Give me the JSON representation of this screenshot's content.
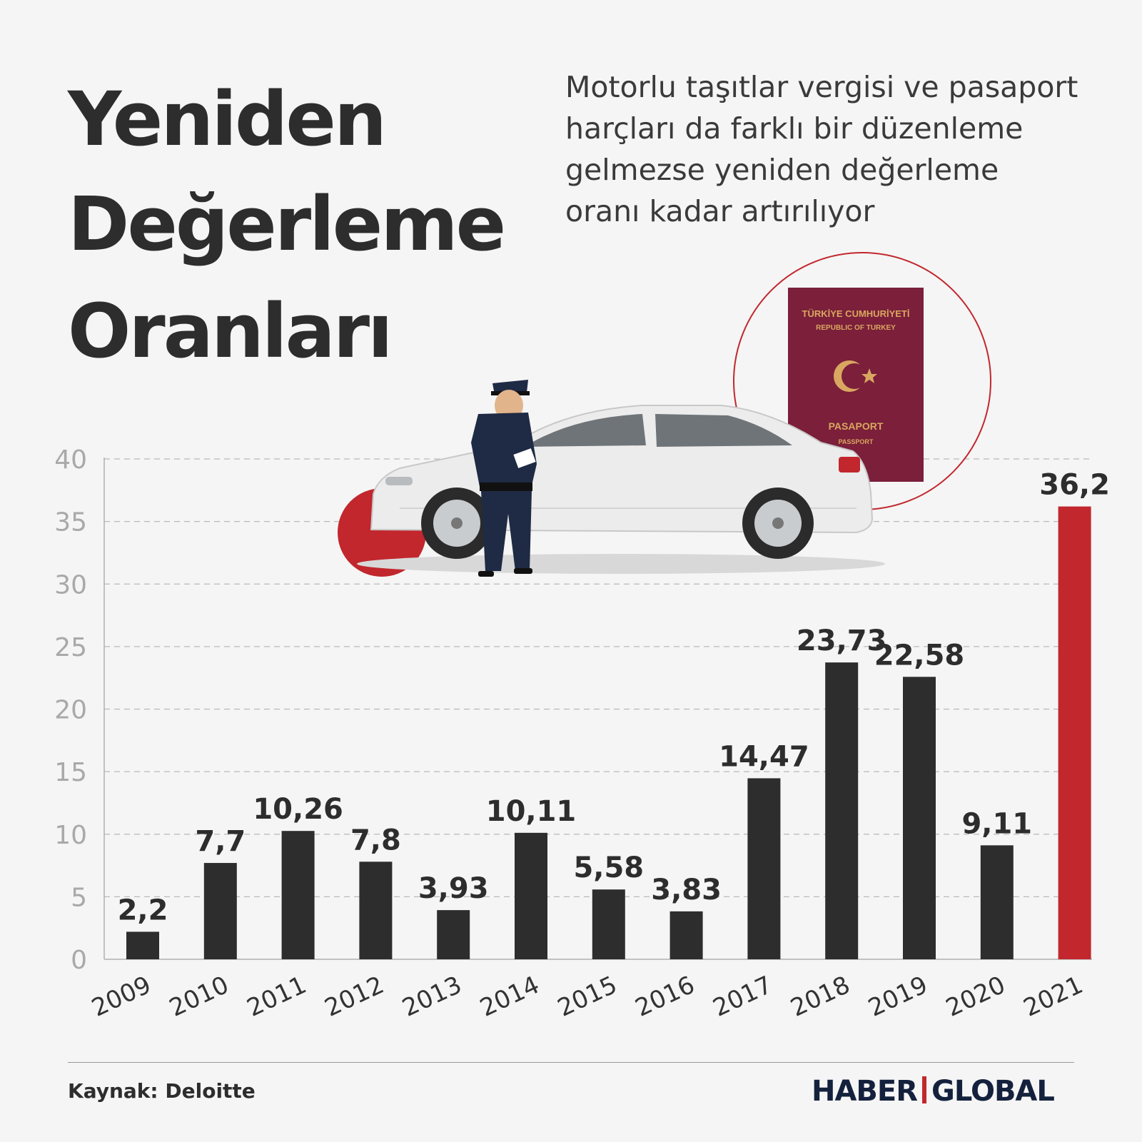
{
  "header": {
    "title_lines": [
      "Yeniden",
      "Değerleme",
      "Oranları"
    ],
    "subtitle_lines": [
      "Motorlu taşıtlar vergisi ve pasaport",
      "harçları da farklı bir düzenleme",
      "gelmezse yeniden değerleme",
      "oranı kadar artırılıyor"
    ]
  },
  "illustration": {
    "passport_lines": [
      "TÜRKİYE CUMHURİYETİ",
      "REPUBLIC OF TURKEY",
      "PASAPORT",
      "PASSPORT"
    ]
  },
  "colors": {
    "bar": "#2d2d2d",
    "highlight": "#c1272d",
    "passport": "#7b1f3a",
    "brand": "#14213d"
  },
  "chart_data": {
    "type": "bar",
    "categories": [
      "2009",
      "2010",
      "2011",
      "2012",
      "2013",
      "2014",
      "2015",
      "2016",
      "2017",
      "2018",
      "2019",
      "2020",
      "2021"
    ],
    "values": [
      2.2,
      7.7,
      10.26,
      7.8,
      3.93,
      10.11,
      5.58,
      3.83,
      14.47,
      23.73,
      22.58,
      9.11,
      36.2
    ],
    "value_labels": [
      "2,2",
      "7,7",
      "10,26",
      "7,8",
      "3,93",
      "10,11",
      "5,58",
      "3,83",
      "14,47",
      "23,73",
      "22,58",
      "9,11",
      "36,2"
    ],
    "highlight_category": "2021",
    "ylim": [
      0,
      40
    ],
    "yticks": [
      0,
      5,
      10,
      15,
      20,
      25,
      30,
      35,
      40
    ],
    "grid": true,
    "xlabel": "",
    "ylabel": ""
  },
  "footer": {
    "source": "Kaynak: Deloitte",
    "brand_left": "HABER",
    "brand_right": "GLOBAL"
  }
}
